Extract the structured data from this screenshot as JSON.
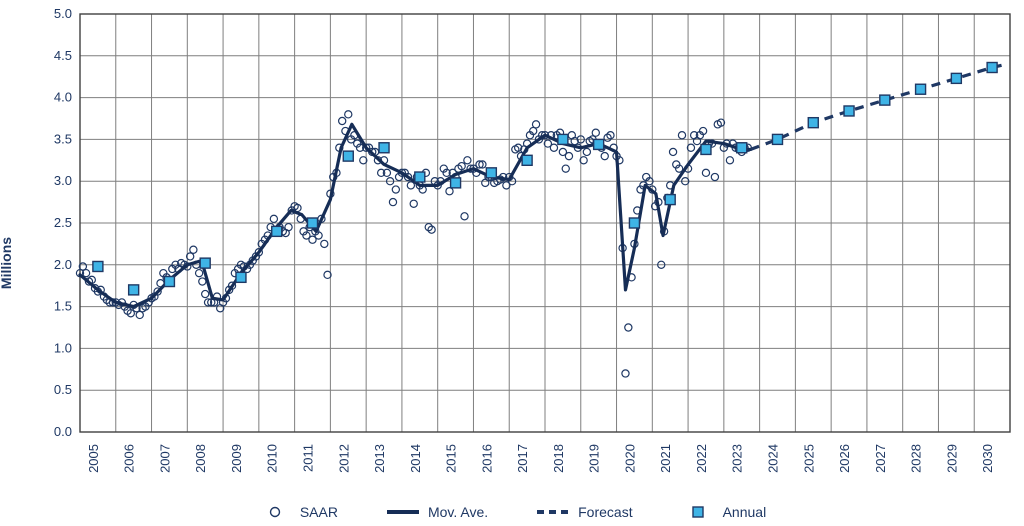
{
  "chart": {
    "type": "line+scatter",
    "ylabel": "Millions",
    "x": {
      "min": 2005,
      "max": 2031,
      "tick_start": 2005,
      "tick_end": 2030,
      "tick_step": 1
    },
    "y": {
      "min": 0.0,
      "max": 5.0,
      "tick_step": 0.5
    },
    "colors": {
      "bg": "#ffffff",
      "grid": "#7f7f7f",
      "border": "#404040",
      "text": "#1f3864",
      "saar_stroke": "#1f3864",
      "movave": "#162d56",
      "forecast": "#1f3864",
      "annual_fill": "#3fb4e6",
      "annual_stroke": "#1f3864"
    },
    "style": {
      "grid_width": 1,
      "movave_width": 3.2,
      "forecast_width": 3.2,
      "forecast_dash": "9,7",
      "saar_radius": 3.6,
      "saar_stroke_width": 1.2,
      "annual_size": 10,
      "annual_stroke_width": 1.4,
      "tick_fontsize": 13,
      "label_fontsize": 14
    },
    "legend": {
      "saar": "SAAR",
      "movave": "Mov. Ave.",
      "forecast": "Forecast",
      "annual": "Annual"
    },
    "series": {
      "saar": [
        [
          2005.0,
          1.9
        ],
        [
          2005.08,
          1.98
        ],
        [
          2005.17,
          1.9
        ],
        [
          2005.25,
          1.8
        ],
        [
          2005.33,
          1.82
        ],
        [
          2005.42,
          1.72
        ],
        [
          2005.5,
          1.68
        ],
        [
          2005.58,
          1.7
        ],
        [
          2005.67,
          1.62
        ],
        [
          2005.75,
          1.58
        ],
        [
          2005.83,
          1.55
        ],
        [
          2005.92,
          1.55
        ],
        [
          2006.0,
          1.55
        ],
        [
          2006.08,
          1.52
        ],
        [
          2006.17,
          1.55
        ],
        [
          2006.25,
          1.5
        ],
        [
          2006.33,
          1.45
        ],
        [
          2006.42,
          1.42
        ],
        [
          2006.5,
          1.52
        ],
        [
          2006.58,
          1.48
        ],
        [
          2006.67,
          1.4
        ],
        [
          2006.75,
          1.48
        ],
        [
          2006.83,
          1.5
        ],
        [
          2006.92,
          1.55
        ],
        [
          2007.0,
          1.6
        ],
        [
          2007.08,
          1.62
        ],
        [
          2007.17,
          1.68
        ],
        [
          2007.25,
          1.78
        ],
        [
          2007.33,
          1.9
        ],
        [
          2007.42,
          1.85
        ],
        [
          2007.5,
          1.82
        ],
        [
          2007.58,
          1.95
        ],
        [
          2007.67,
          2.0
        ],
        [
          2007.75,
          1.95
        ],
        [
          2007.83,
          2.02
        ],
        [
          2007.92,
          2.0
        ],
        [
          2008.0,
          1.98
        ],
        [
          2008.08,
          2.1
        ],
        [
          2008.17,
          2.18
        ],
        [
          2008.25,
          2.0
        ],
        [
          2008.33,
          1.9
        ],
        [
          2008.42,
          1.8
        ],
        [
          2008.5,
          1.65
        ],
        [
          2008.58,
          1.55
        ],
        [
          2008.67,
          1.55
        ],
        [
          2008.75,
          1.55
        ],
        [
          2008.83,
          1.62
        ],
        [
          2008.92,
          1.48
        ],
        [
          2009.0,
          1.55
        ],
        [
          2009.08,
          1.6
        ],
        [
          2009.17,
          1.7
        ],
        [
          2009.25,
          1.75
        ],
        [
          2009.33,
          1.9
        ],
        [
          2009.42,
          1.95
        ],
        [
          2009.5,
          2.0
        ],
        [
          2009.58,
          1.98
        ],
        [
          2009.67,
          1.95
        ],
        [
          2009.75,
          2.0
        ],
        [
          2009.83,
          2.05
        ],
        [
          2009.92,
          2.1
        ],
        [
          2010.0,
          2.15
        ],
        [
          2010.08,
          2.25
        ],
        [
          2010.17,
          2.3
        ],
        [
          2010.25,
          2.35
        ],
        [
          2010.33,
          2.45
        ],
        [
          2010.42,
          2.55
        ],
        [
          2010.5,
          2.4
        ],
        [
          2010.58,
          2.45
        ],
        [
          2010.67,
          2.4
        ],
        [
          2010.75,
          2.38
        ],
        [
          2010.83,
          2.45
        ],
        [
          2010.92,
          2.65
        ],
        [
          2011.0,
          2.7
        ],
        [
          2011.08,
          2.68
        ],
        [
          2011.17,
          2.55
        ],
        [
          2011.25,
          2.4
        ],
        [
          2011.33,
          2.35
        ],
        [
          2011.42,
          2.45
        ],
        [
          2011.5,
          2.3
        ],
        [
          2011.58,
          2.4
        ],
        [
          2011.67,
          2.35
        ],
        [
          2011.75,
          2.55
        ],
        [
          2011.83,
          2.25
        ],
        [
          2011.92,
          1.88
        ],
        [
          2012.0,
          2.85
        ],
        [
          2012.08,
          3.05
        ],
        [
          2012.17,
          3.1
        ],
        [
          2012.25,
          3.4
        ],
        [
          2012.33,
          3.72
        ],
        [
          2012.42,
          3.6
        ],
        [
          2012.5,
          3.8
        ],
        [
          2012.58,
          3.5
        ],
        [
          2012.67,
          3.55
        ],
        [
          2012.75,
          3.45
        ],
        [
          2012.83,
          3.4
        ],
        [
          2012.92,
          3.25
        ],
        [
          2013.0,
          3.4
        ],
        [
          2013.08,
          3.4
        ],
        [
          2013.17,
          3.35
        ],
        [
          2013.25,
          3.35
        ],
        [
          2013.33,
          3.25
        ],
        [
          2013.42,
          3.1
        ],
        [
          2013.5,
          3.25
        ],
        [
          2013.58,
          3.1
        ],
        [
          2013.67,
          3.0
        ],
        [
          2013.75,
          2.75
        ],
        [
          2013.83,
          2.9
        ],
        [
          2013.92,
          3.05
        ],
        [
          2014.0,
          3.1
        ],
        [
          2014.08,
          3.1
        ],
        [
          2014.17,
          3.05
        ],
        [
          2014.25,
          2.95
        ],
        [
          2014.33,
          2.73
        ],
        [
          2014.42,
          3.05
        ],
        [
          2014.5,
          2.95
        ],
        [
          2014.58,
          2.9
        ],
        [
          2014.67,
          3.1
        ],
        [
          2014.75,
          2.45
        ],
        [
          2014.83,
          2.42
        ],
        [
          2014.92,
          3.0
        ],
        [
          2015.0,
          2.95
        ],
        [
          2015.08,
          3.0
        ],
        [
          2015.17,
          3.15
        ],
        [
          2015.25,
          3.1
        ],
        [
          2015.33,
          2.88
        ],
        [
          2015.42,
          3.1
        ],
        [
          2015.5,
          3.05
        ],
        [
          2015.58,
          3.15
        ],
        [
          2015.67,
          3.18
        ],
        [
          2015.75,
          2.58
        ],
        [
          2015.83,
          3.25
        ],
        [
          2015.92,
          3.15
        ],
        [
          2016.0,
          3.15
        ],
        [
          2016.08,
          3.1
        ],
        [
          2016.17,
          3.2
        ],
        [
          2016.25,
          3.2
        ],
        [
          2016.33,
          2.98
        ],
        [
          2016.42,
          3.05
        ],
        [
          2016.5,
          3.05
        ],
        [
          2016.58,
          2.98
        ],
        [
          2016.67,
          3.0
        ],
        [
          2016.75,
          3.02
        ],
        [
          2016.83,
          3.05
        ],
        [
          2016.92,
          2.95
        ],
        [
          2017.0,
          3.05
        ],
        [
          2017.08,
          3.0
        ],
        [
          2017.17,
          3.38
        ],
        [
          2017.25,
          3.4
        ],
        [
          2017.33,
          3.3
        ],
        [
          2017.42,
          3.38
        ],
        [
          2017.5,
          3.45
        ],
        [
          2017.58,
          3.55
        ],
        [
          2017.67,
          3.6
        ],
        [
          2017.75,
          3.68
        ],
        [
          2017.83,
          3.5
        ],
        [
          2017.92,
          3.55
        ],
        [
          2018.0,
          3.55
        ],
        [
          2018.08,
          3.45
        ],
        [
          2018.17,
          3.55
        ],
        [
          2018.25,
          3.4
        ],
        [
          2018.33,
          3.55
        ],
        [
          2018.42,
          3.58
        ],
        [
          2018.5,
          3.35
        ],
        [
          2018.58,
          3.15
        ],
        [
          2018.67,
          3.3
        ],
        [
          2018.75,
          3.55
        ],
        [
          2018.83,
          3.48
        ],
        [
          2018.92,
          3.4
        ],
        [
          2019.0,
          3.5
        ],
        [
          2019.08,
          3.25
        ],
        [
          2019.17,
          3.35
        ],
        [
          2019.25,
          3.48
        ],
        [
          2019.33,
          3.5
        ],
        [
          2019.42,
          3.58
        ],
        [
          2019.5,
          3.45
        ],
        [
          2019.58,
          3.4
        ],
        [
          2019.67,
          3.3
        ],
        [
          2019.75,
          3.52
        ],
        [
          2019.83,
          3.55
        ],
        [
          2019.92,
          3.4
        ],
        [
          2020.0,
          3.3
        ],
        [
          2020.08,
          3.25
        ],
        [
          2020.17,
          2.2
        ],
        [
          2020.25,
          0.7
        ],
        [
          2020.33,
          1.25
        ],
        [
          2020.42,
          1.85
        ],
        [
          2020.5,
          2.25
        ],
        [
          2020.58,
          2.65
        ],
        [
          2020.67,
          2.9
        ],
        [
          2020.75,
          2.95
        ],
        [
          2020.83,
          3.05
        ],
        [
          2020.92,
          3.0
        ],
        [
          2021.0,
          2.9
        ],
        [
          2021.08,
          2.7
        ],
        [
          2021.17,
          2.75
        ],
        [
          2021.25,
          2.0
        ],
        [
          2021.33,
          2.4
        ],
        [
          2021.42,
          2.8
        ],
        [
          2021.5,
          2.95
        ],
        [
          2021.58,
          3.35
        ],
        [
          2021.67,
          3.2
        ],
        [
          2021.75,
          3.15
        ],
        [
          2021.83,
          3.55
        ],
        [
          2021.92,
          3.0
        ],
        [
          2022.0,
          3.15
        ],
        [
          2022.08,
          3.4
        ],
        [
          2022.17,
          3.55
        ],
        [
          2022.25,
          3.48
        ],
        [
          2022.33,
          3.55
        ],
        [
          2022.42,
          3.6
        ],
        [
          2022.5,
          3.1
        ],
        [
          2022.58,
          3.45
        ],
        [
          2022.67,
          3.45
        ],
        [
          2022.75,
          3.05
        ],
        [
          2022.83,
          3.68
        ],
        [
          2022.92,
          3.7
        ],
        [
          2023.0,
          3.4
        ],
        [
          2023.08,
          3.45
        ],
        [
          2023.17,
          3.25
        ],
        [
          2023.25,
          3.45
        ],
        [
          2023.33,
          3.4
        ],
        [
          2023.42,
          3.38
        ],
        [
          2023.5,
          3.35
        ],
        [
          2023.58,
          3.4
        ],
        [
          2023.67,
          3.4
        ]
      ],
      "movave": [
        [
          2005.0,
          1.88
        ],
        [
          2005.5,
          1.7
        ],
        [
          2006.0,
          1.55
        ],
        [
          2006.5,
          1.5
        ],
        [
          2007.0,
          1.6
        ],
        [
          2007.5,
          1.82
        ],
        [
          2008.0,
          2.0
        ],
        [
          2008.4,
          2.05
        ],
        [
          2008.7,
          1.6
        ],
        [
          2009.0,
          1.58
        ],
        [
          2009.5,
          1.9
        ],
        [
          2010.0,
          2.15
        ],
        [
          2010.5,
          2.45
        ],
        [
          2010.9,
          2.65
        ],
        [
          2011.2,
          2.6
        ],
        [
          2011.6,
          2.4
        ],
        [
          2012.0,
          2.78
        ],
        [
          2012.3,
          3.4
        ],
        [
          2012.6,
          3.68
        ],
        [
          2013.0,
          3.4
        ],
        [
          2013.5,
          3.2
        ],
        [
          2014.0,
          3.1
        ],
        [
          2014.5,
          2.95
        ],
        [
          2015.0,
          2.95
        ],
        [
          2015.5,
          3.08
        ],
        [
          2016.0,
          3.15
        ],
        [
          2016.5,
          3.05
        ],
        [
          2017.0,
          3.02
        ],
        [
          2017.5,
          3.4
        ],
        [
          2018.0,
          3.55
        ],
        [
          2018.5,
          3.45
        ],
        [
          2019.0,
          3.4
        ],
        [
          2019.5,
          3.45
        ],
        [
          2020.0,
          3.35
        ],
        [
          2020.25,
          1.7
        ],
        [
          2020.5,
          2.2
        ],
        [
          2020.8,
          2.95
        ],
        [
          2021.1,
          2.85
        ],
        [
          2021.3,
          2.35
        ],
        [
          2021.6,
          2.95
        ],
        [
          2022.0,
          3.2
        ],
        [
          2022.5,
          3.48
        ],
        [
          2023.0,
          3.45
        ],
        [
          2023.5,
          3.38
        ],
        [
          2023.75,
          3.38
        ]
      ],
      "forecast": [
        [
          2023.75,
          3.38
        ],
        [
          2024.5,
          3.5
        ],
        [
          2025.5,
          3.7
        ],
        [
          2026.5,
          3.84
        ],
        [
          2027.5,
          3.97
        ],
        [
          2028.5,
          4.1
        ],
        [
          2029.5,
          4.23
        ],
        [
          2030.5,
          4.36
        ],
        [
          2030.9,
          4.4
        ]
      ],
      "annual": [
        [
          2005.5,
          1.98
        ],
        [
          2006.5,
          1.7
        ],
        [
          2007.5,
          1.8
        ],
        [
          2008.5,
          2.02
        ],
        [
          2009.5,
          1.85
        ],
        [
          2010.5,
          2.4
        ],
        [
          2011.5,
          2.5
        ],
        [
          2012.5,
          3.3
        ],
        [
          2013.5,
          3.4
        ],
        [
          2014.5,
          3.05
        ],
        [
          2015.5,
          2.98
        ],
        [
          2016.5,
          3.1
        ],
        [
          2017.5,
          3.25
        ],
        [
          2018.5,
          3.5
        ],
        [
          2019.5,
          3.44
        ],
        [
          2020.5,
          2.5
        ],
        [
          2021.5,
          2.78
        ],
        [
          2022.5,
          3.38
        ],
        [
          2023.5,
          3.4
        ],
        [
          2024.5,
          3.5
        ],
        [
          2025.5,
          3.7
        ],
        [
          2026.5,
          3.84
        ],
        [
          2027.5,
          3.97
        ],
        [
          2028.5,
          4.1
        ],
        [
          2029.5,
          4.23
        ],
        [
          2030.5,
          4.36
        ]
      ]
    }
  }
}
